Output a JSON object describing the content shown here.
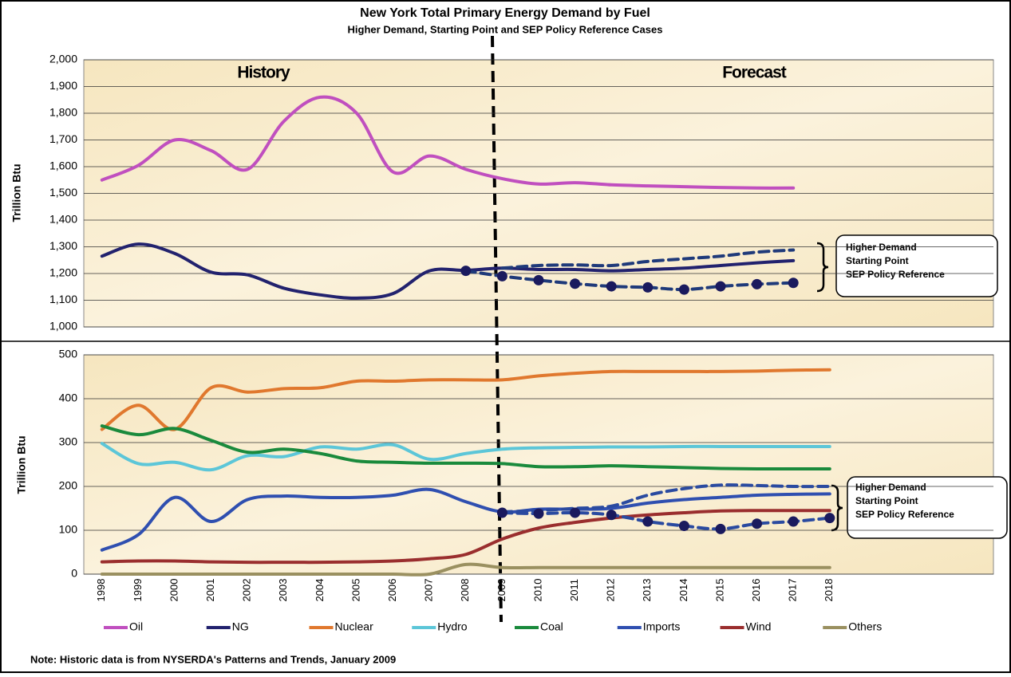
{
  "title": "New York Total Primary Energy Demand by Fuel",
  "subtitle": "Higher Demand, Starting Point and SEP Policy Reference Cases",
  "note": "Note: Historic data is from NYSERDA's Patterns and Trends, January 2009",
  "chart_data": [
    {
      "type": "line",
      "y_label": "Trillion Btu",
      "annotations": [
        "History",
        "Forecast"
      ],
      "cases": [
        "Higher Demand",
        "Starting Point",
        "SEP Policy Reference"
      ],
      "ylim": [
        1000,
        2000
      ],
      "yticks": [
        {
          "value": 1000,
          "label": "1,000"
        },
        {
          "value": 1100,
          "label": "1,100"
        },
        {
          "value": 1200,
          "label": "1,200"
        },
        {
          "value": 1300,
          "label": "1,300"
        },
        {
          "value": 1400,
          "label": "1,400"
        },
        {
          "value": 1500,
          "label": "1,500"
        },
        {
          "value": 1600,
          "label": "1,600"
        },
        {
          "value": 1700,
          "label": "1,700"
        },
        {
          "value": 1800,
          "label": "1,800"
        },
        {
          "value": 1900,
          "label": "1,900"
        },
        {
          "value": 2000,
          "label": "2,000"
        }
      ],
      "grid": true,
      "series": [
        {
          "name": "Oil",
          "color": "#c04fbf",
          "values": [
            1550,
            1605,
            1700,
            1660,
            1590,
            1770,
            1860,
            1800,
            1580,
            1640,
            1590,
            1555,
            1535,
            1540,
            1532,
            1528,
            1525,
            1522,
            1520,
            1520,
            null,
            null,
            null,
            null,
            null
          ]
        },
        {
          "name": "NG",
          "color": "#22226e",
          "values": [
            1265,
            1310,
            1275,
            1205,
            1195,
            1145,
            1120,
            1108,
            1125,
            1210,
            1212,
            1220,
            1215,
            1215,
            1210,
            1215,
            1220,
            1230,
            1240,
            1248,
            null,
            null,
            null,
            null,
            null
          ]
        },
        {
          "color": "#1f3a7a",
          "dashed": true,
          "values": [
            null,
            null,
            null,
            null,
            null,
            null,
            null,
            null,
            null,
            null,
            null,
            1220,
            1230,
            1232,
            1230,
            1245,
            1255,
            1265,
            1280,
            1288,
            null,
            null,
            null,
            null,
            null
          ]
        },
        {
          "color": "#1f3a7a",
          "dashed": true,
          "markers": true,
          "values": [
            null,
            null,
            null,
            null,
            null,
            null,
            null,
            null,
            null,
            null,
            1210,
            1190,
            1175,
            1162,
            1152,
            1148,
            1140,
            1152,
            1160,
            1165,
            null,
            null,
            null,
            null,
            null
          ]
        }
      ]
    },
    {
      "type": "line",
      "y_label": "Trillion Btu",
      "cases": [
        "Higher Demand",
        "Starting Point",
        "SEP Policy Reference"
      ],
      "categories": [
        "1998",
        "1999",
        "2000",
        "2001",
        "2002",
        "2003",
        "2004",
        "2005",
        "2006",
        "2007",
        "2008",
        "2009",
        "2010",
        "2011",
        "2012",
        "2013",
        "2014",
        "2015",
        "2016",
        "2017",
        "2018",
        null,
        null,
        null,
        null
      ],
      "ylim": [
        0,
        500
      ],
      "yticks": [
        0,
        100,
        200,
        300,
        400,
        500
      ],
      "grid": true,
      "series": [
        {
          "name": "Nuclear",
          "color": "#e0782e",
          "values": [
            330,
            385,
            330,
            425,
            415,
            423,
            425,
            440,
            440,
            443,
            443,
            443,
            452,
            458,
            462,
            462,
            462,
            462,
            463,
            465,
            466,
            null,
            null,
            null,
            null
          ]
        },
        {
          "name": "Hydro",
          "color": "#5cc6d8",
          "values": [
            298,
            252,
            255,
            238,
            270,
            268,
            290,
            285,
            295,
            262,
            275,
            285,
            288,
            289,
            290,
            290,
            291,
            291,
            291,
            291,
            291,
            null,
            null,
            null,
            null
          ]
        },
        {
          "name": "Coal",
          "color": "#1a8a3c",
          "values": [
            338,
            318,
            332,
            305,
            278,
            285,
            275,
            258,
            255,
            253,
            253,
            252,
            245,
            245,
            247,
            245,
            243,
            241,
            240,
            240,
            240,
            null,
            null,
            null,
            null
          ]
        },
        {
          "name": "Imports",
          "color": "#2f4fb0",
          "values": [
            55,
            90,
            175,
            120,
            170,
            178,
            175,
            175,
            180,
            193,
            165,
            142,
            148,
            148,
            150,
            162,
            170,
            175,
            180,
            182,
            183,
            null,
            null,
            null,
            null
          ]
        },
        {
          "name": "Wind",
          "color": "#9a2e2e",
          "values": [
            28,
            30,
            30,
            28,
            27,
            27,
            27,
            28,
            30,
            35,
            45,
            80,
            105,
            118,
            128,
            135,
            140,
            144,
            145,
            145,
            145,
            null,
            null,
            null,
            null
          ]
        },
        {
          "name": "Others",
          "color": "#9a9060",
          "values": [
            0,
            0,
            0,
            0,
            0,
            0,
            0,
            0,
            0,
            0,
            22,
            15,
            15,
            15,
            15,
            15,
            15,
            15,
            15,
            15,
            15,
            null,
            null,
            null,
            null
          ]
        },
        {
          "color": "#2a4aa0",
          "dashed": true,
          "values": [
            null,
            null,
            null,
            null,
            null,
            null,
            null,
            null,
            null,
            null,
            null,
            142,
            145,
            150,
            155,
            180,
            195,
            203,
            202,
            200,
            200,
            null,
            null,
            null,
            null
          ]
        },
        {
          "color": "#2a4aa0",
          "dashed": true,
          "markers": true,
          "values": [
            null,
            null,
            null,
            null,
            null,
            null,
            null,
            null,
            null,
            null,
            null,
            140,
            138,
            140,
            135,
            120,
            110,
            103,
            115,
            120,
            128,
            null,
            null,
            null,
            null
          ]
        }
      ]
    }
  ]
}
